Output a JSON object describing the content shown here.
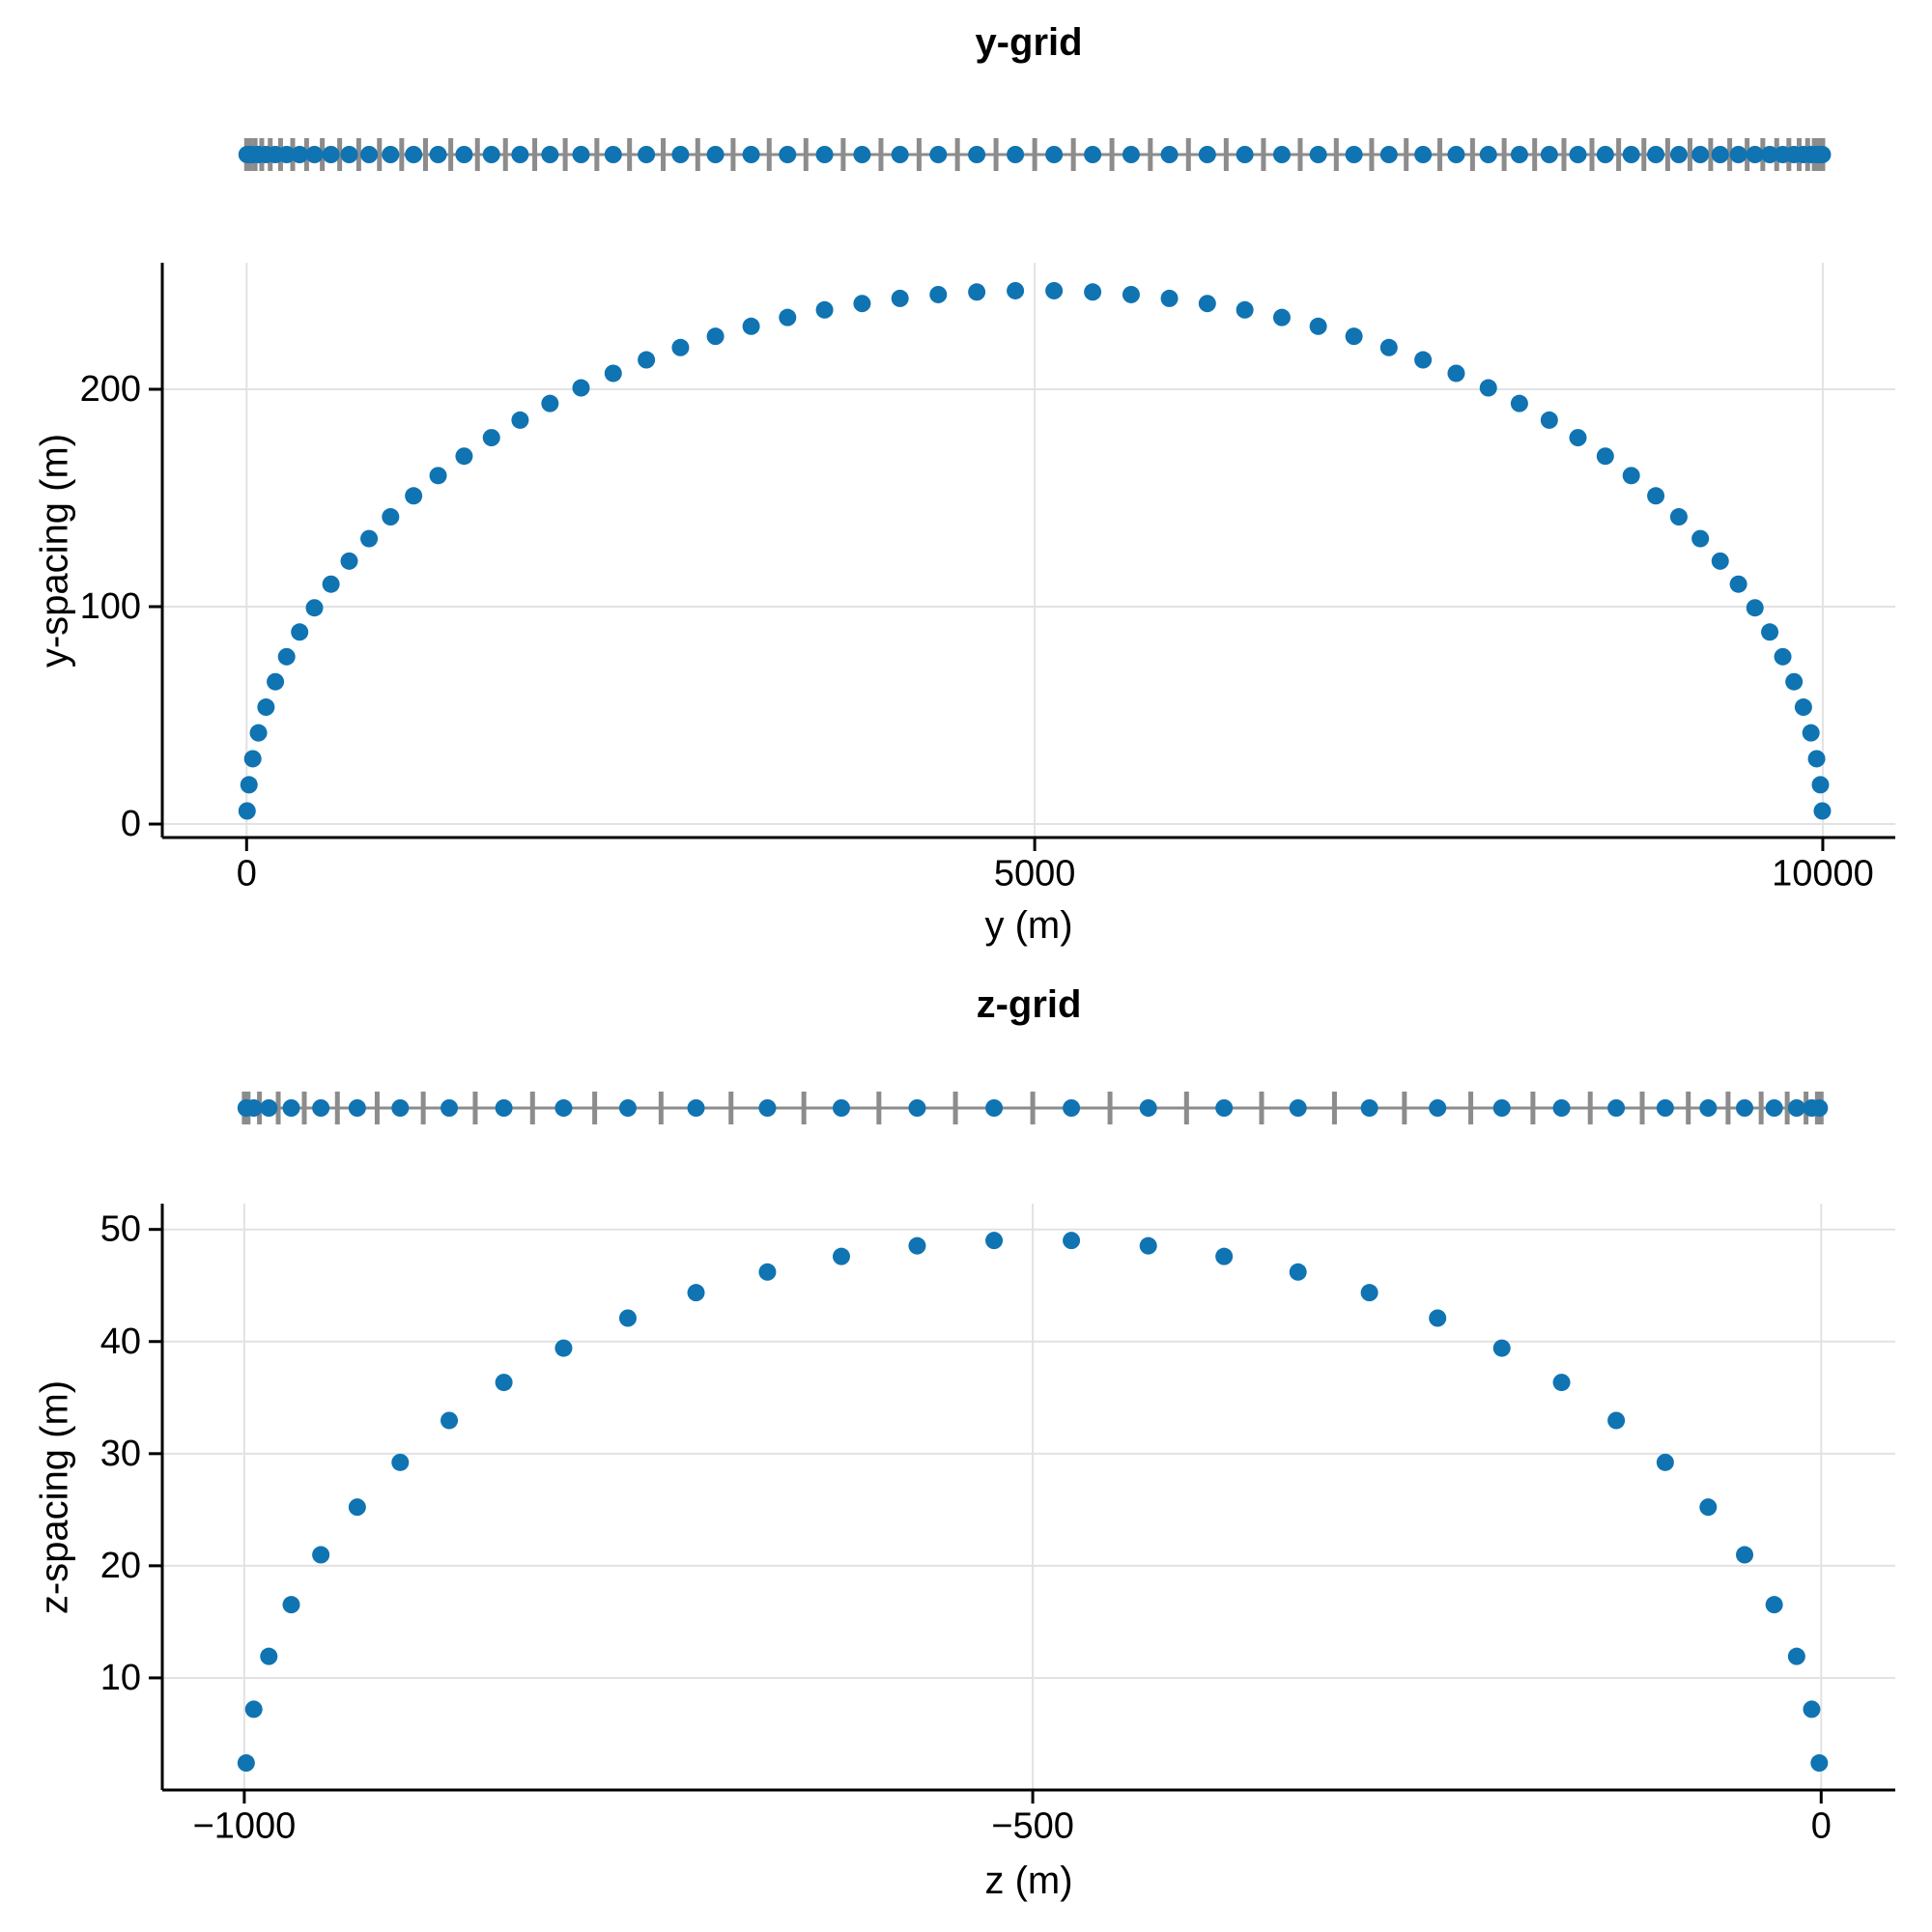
{
  "colors": {
    "point": "#1073B2",
    "rug_gray": "#8C8C8C",
    "grid_line": "#E2E2E2",
    "axis": "#000000",
    "text": "#000000"
  },
  "chart_data": [
    {
      "type": "scatter",
      "title": "y-grid",
      "xlabel": "y (m)",
      "ylabel": "y-spacing (m)",
      "xtick_values": [
        0,
        5000,
        10000
      ],
      "xtick_labels": [
        "0",
        "5000",
        "10000"
      ],
      "ytick_values": [
        0,
        100,
        200
      ],
      "ytick_labels": [
        "0",
        "100",
        "200"
      ],
      "xlim": [
        -535,
        10460
      ],
      "ylim": [
        -6.2,
        258.2
      ],
      "grid": true,
      "legend": null,
      "rug_description": "gray ticks at grid nodes, blue dots at cell midpoints",
      "nodes": [
        0,
        6.02,
        24.08,
        54.12,
        96.07,
        149.84,
        215.3,
        292.28,
        380.6,
        480.05,
        590.39,
        711.36,
        842.65,
        983.96,
        1134.95,
        1295.24,
        1464.47,
        1642.21,
        1828.03,
        2021.5,
        2222.15,
        2429.49,
        2643.02,
        2862.22,
        3086.58,
        3315.55,
        3548.58,
        3785.1,
        4024.55,
        4266.35,
        4509.91,
        4754.66,
        5000,
        5245.34,
        5490.09,
        5733.65,
        5975.45,
        6214.9,
        6451.42,
        6684.45,
        6913.42,
        7137.78,
        7356.98,
        7570.51,
        7777.85,
        7978.5,
        8171.97,
        8357.79,
        8535.53,
        8704.76,
        8865.05,
        9016.04,
        9157.35,
        9288.64,
        9409.61,
        9519.95,
        9619.4,
        9707.72,
        9784.7,
        9850.16,
        9903.93,
        9945.88,
        9975.92,
        9993.98,
        10000
      ],
      "midpoints": [
        3.01,
        15.05,
        39.1,
        75.1,
        122.96,
        182.57,
        253.79,
        336.44,
        430.33,
        535.22,
        650.88,
        777.01,
        913.31,
        1059.46,
        1215.1,
        1379.86,
        1553.34,
        1735.12,
        1924.77,
        2121.83,
        2325.82,
        2536.26,
        2752.62,
        2974.4,
        3201.07,
        3432.07,
        3666.84,
        3904.83,
        4145.45,
        4388.13,
        4632.29,
        4877.33,
        5122.67,
        5367.71,
        5611.87,
        5854.55,
        6095.17,
        6333.16,
        6567.93,
        6798.93,
        7025.6,
        7247.38,
        7463.74,
        7674.18,
        7878.17,
        8075.23,
        8264.88,
        8446.66,
        8620.14,
        8784.9,
        8940.54,
        9086.69,
        9222.99,
        9349.12,
        9464.78,
        9569.67,
        9663.56,
        9746.21,
        9817.43,
        9877.04,
        9924.9,
        9960.9,
        9984.95,
        9996.99
      ],
      "spacings": [
        6.02,
        18.06,
        30.04,
        41.95,
        53.77,
        65.46,
        76.98,
        88.32,
        99.45,
        110.34,
        120.97,
        131.29,
        141.31,
        150.99,
        160.29,
        169.23,
        177.74,
        185.82,
        193.47,
        200.65,
        207.34,
        213.53,
        219.2,
        224.36,
        228.97,
        233.03,
        236.52,
        239.45,
        241.8,
        243.56,
        244.75,
        245.34,
        245.34,
        244.75,
        243.56,
        241.8,
        239.45,
        236.52,
        233.03,
        228.97,
        224.36,
        219.2,
        213.53,
        207.34,
        200.65,
        193.47,
        185.82,
        177.74,
        169.23,
        160.29,
        150.99,
        141.31,
        131.29,
        120.97,
        110.34,
        99.45,
        88.32,
        76.98,
        65.46,
        53.77,
        41.95,
        30.04,
        18.06,
        6.02
      ]
    },
    {
      "type": "scatter",
      "title": "z-grid",
      "xlabel": "z (m)",
      "ylabel": "z-spacing (m)",
      "xtick_values": [
        -1000,
        -500,
        0
      ],
      "xtick_labels": [
        "−1000",
        "−500",
        "0"
      ],
      "ytick_values": [
        10,
        20,
        30,
        40,
        50
      ],
      "ytick_labels": [
        "10",
        "20",
        "30",
        "40",
        "50"
      ],
      "xlim": [
        -1052,
        47
      ],
      "ylim": [
        0,
        52.3
      ],
      "grid": true,
      "legend": null,
      "rug_description": "gray ticks at grid nodes, blue dots at cell midpoints",
      "nodes": [
        -1000,
        -997.59,
        -990.39,
        -978.47,
        -961.94,
        -940.96,
        -915.73,
        -886.51,
        -853.55,
        -817.2,
        -777.79,
        -735.7,
        -691.34,
        -645.14,
        -597.55,
        -549.01,
        -500,
        -450.99,
        -402.45,
        -354.86,
        -308.66,
        -264.3,
        -222.21,
        -182.8,
        -146.45,
        -113.49,
        -84.27,
        -59.04,
        -38.06,
        -21.53,
        -9.61,
        -2.41,
        0
      ],
      "midpoints": [
        -998.8,
        -993.99,
        -984.43,
        -970.21,
        -951.45,
        -928.35,
        -901.12,
        -870.03,
        -835.38,
        -797.5,
        -756.75,
        -713.52,
        -668.24,
        -621.35,
        -573.28,
        -524.51,
        -475.49,
        -426.72,
        -378.65,
        -331.76,
        -286.48,
        -243.25,
        -202.5,
        -164.62,
        -129.97,
        -98.88,
        -71.65,
        -48.55,
        -29.79,
        -15.57,
        -6.01,
        -1.2
      ],
      "spacings": [
        2.41,
        7.2,
        11.92,
        16.53,
        20.98,
        25.23,
        29.22,
        32.96,
        36.35,
        39.41,
        42.09,
        44.36,
        46.2,
        47.59,
        48.54,
        49.01,
        49.01,
        48.54,
        47.59,
        46.2,
        44.36,
        42.09,
        39.41,
        36.35,
        32.96,
        29.22,
        25.23,
        20.98,
        16.53,
        11.92,
        7.2,
        2.41
      ]
    }
  ]
}
